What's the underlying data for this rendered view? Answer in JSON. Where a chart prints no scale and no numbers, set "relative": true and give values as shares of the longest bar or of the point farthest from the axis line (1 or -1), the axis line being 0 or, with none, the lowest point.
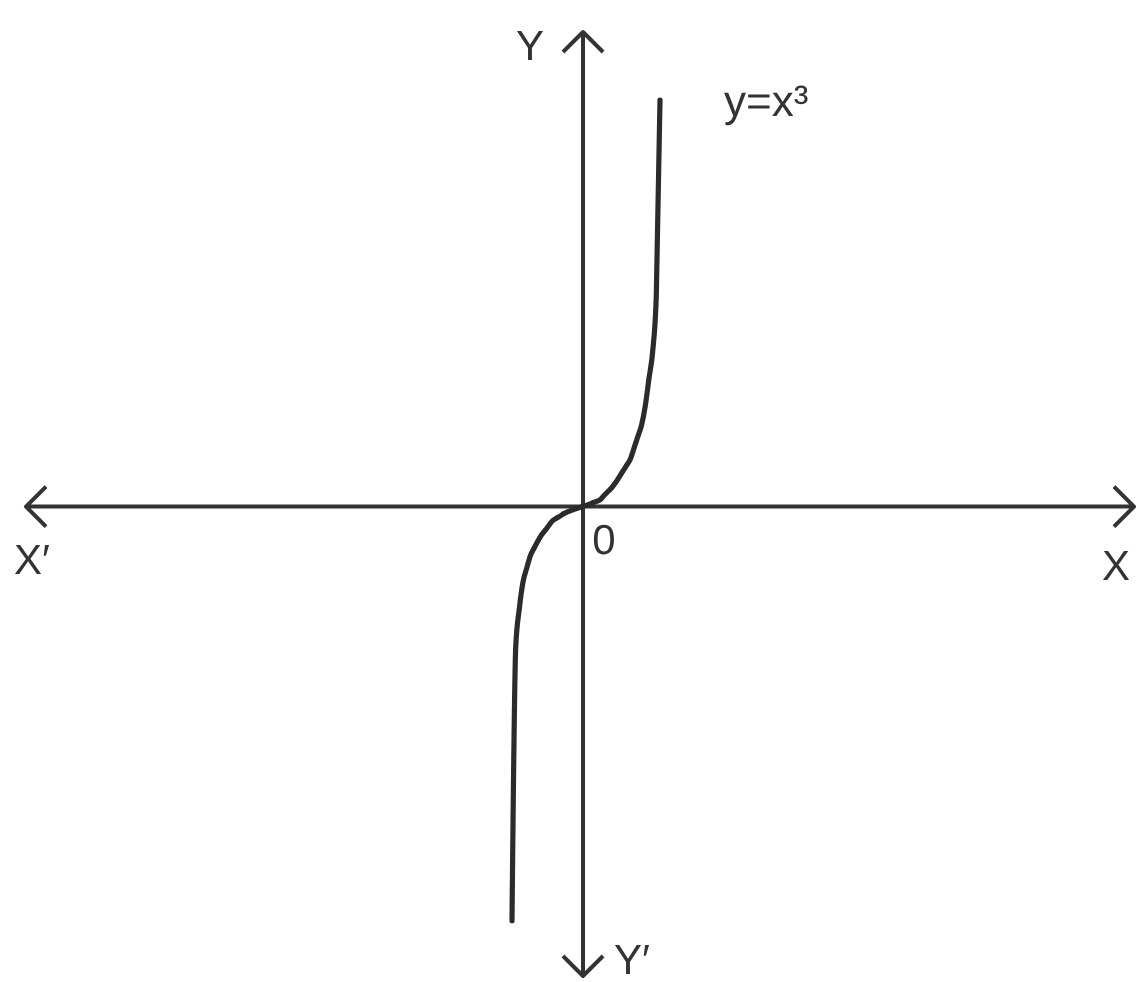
{
  "chart_data": {
    "type": "line",
    "relative": true,
    "ylabel": "Y",
    "annotations": [
      "X′",
      "Y′",
      "0",
      "X"
    ],
    "categories": [
      null,
      null,
      null,
      null,
      null,
      null,
      null,
      null,
      null,
      null,
      null,
      null,
      null,
      null,
      null,
      null,
      null,
      null,
      null,
      null,
      null,
      null,
      null,
      null,
      null,
      null,
      null,
      null,
      null,
      null,
      null,
      null,
      null,
      null,
      null,
      null,
      null,
      null,
      null,
      null,
      null
    ],
    "series": [
      {
        "name": "y=x³",
        "color": "#2b2b2b",
        "values": [
          -1.0,
          -0.341,
          -0.245,
          -0.181,
          -0.148,
          -0.118,
          -0.1,
          -0.083,
          -0.068,
          -0.057,
          -0.045,
          -0.034,
          -0.028,
          -0.023,
          -0.017,
          -0.013,
          -0.009,
          -0.006,
          -0.003,
          0.0,
          0.003,
          0.006,
          0.01,
          0.013,
          0.018,
          0.028,
          0.037,
          0.046,
          0.058,
          0.072,
          0.086,
          0.1,
          0.115,
          0.142,
          0.169,
          0.196,
          0.242,
          0.308,
          0.373,
          0.51,
          0.982
        ]
      }
    ]
  }
}
